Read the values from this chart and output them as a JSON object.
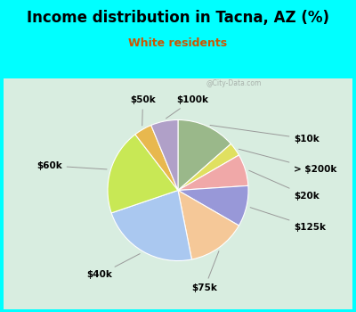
{
  "title": "Income distribution in Tacna, AZ (%)",
  "subtitle": "White residents",
  "background_color": "#00FFFF",
  "chart_bg_color": "#d8ede0",
  "watermark": "@City-Data.com",
  "labels": [
    "$10k",
    "> $200k",
    "$20k",
    "$125k",
    "$75k",
    "$40k",
    "$60k",
    "$50k",
    "$100k"
  ],
  "values": [
    13,
    3,
    7,
    9,
    13,
    22,
    19,
    4,
    6
  ],
  "colors": [
    "#9ab88a",
    "#e0e060",
    "#f0a8a8",
    "#9898d8",
    "#f5c898",
    "#aac8f0",
    "#c8e855",
    "#e8b84e",
    "#b0a0c8"
  ],
  "start_angle": 90,
  "title_fontsize": 12,
  "subtitle_fontsize": 9,
  "label_fontsize": 7.5
}
